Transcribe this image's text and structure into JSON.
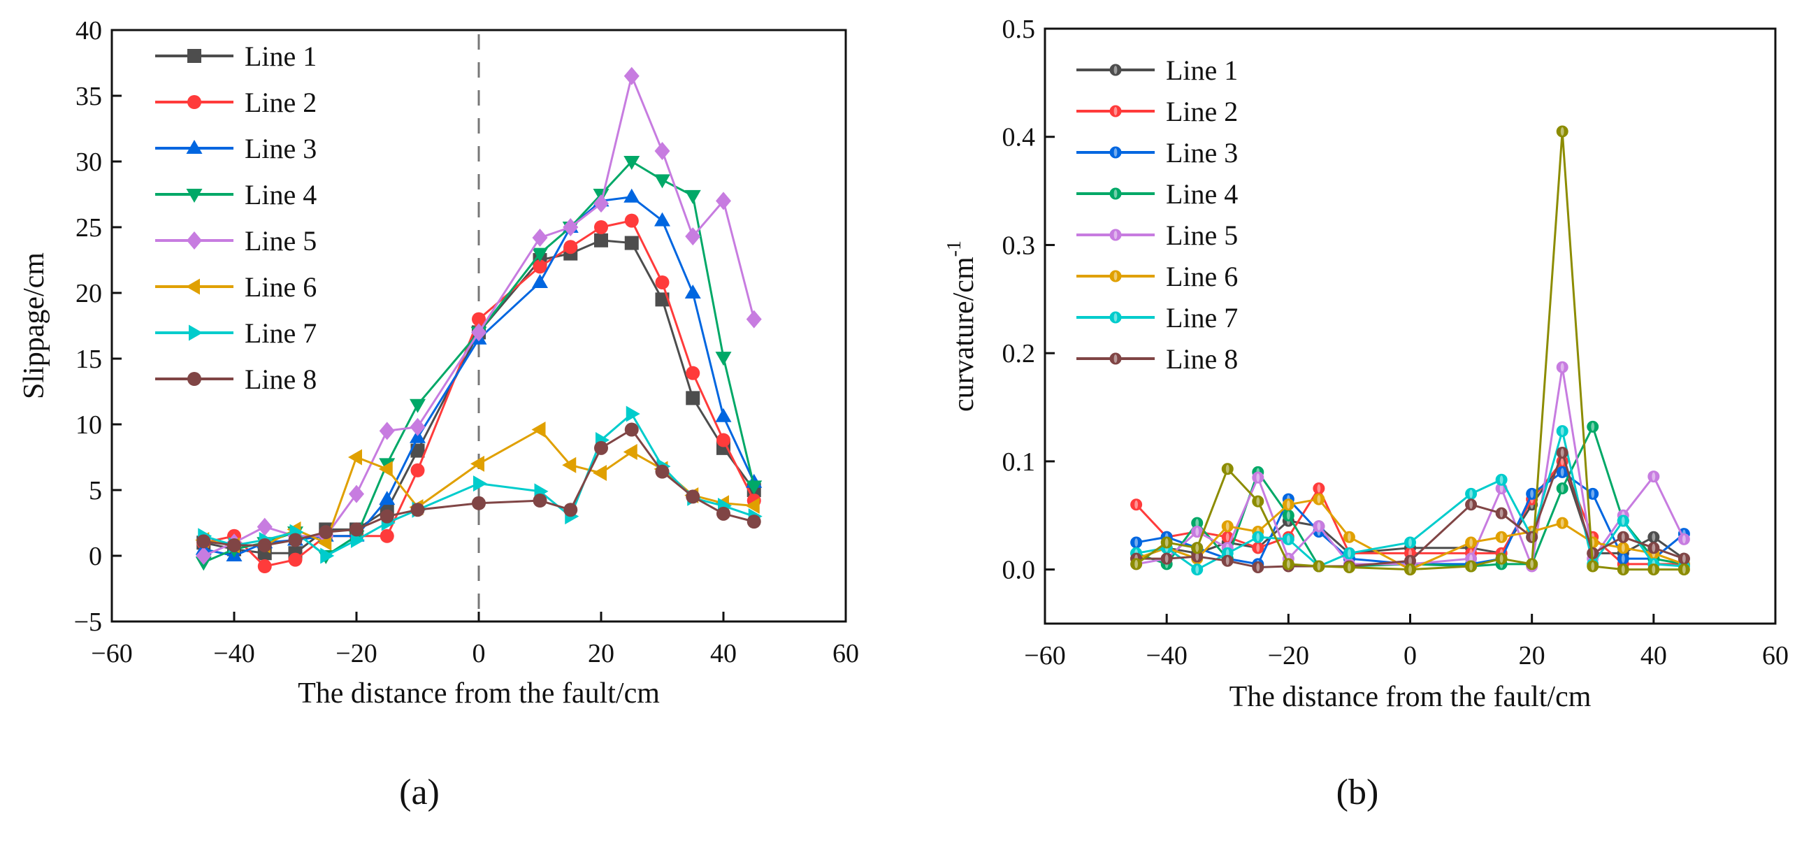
{
  "chart_data": [
    {
      "type": "line",
      "panel": "(a)",
      "xlabel": "The distance from the fault/cm",
      "ylabel": "Slippage/cm",
      "xlim": [
        -60,
        60
      ],
      "ylim": [
        -5,
        40
      ],
      "xticks": [
        -60,
        -40,
        -20,
        0,
        20,
        40,
        60
      ],
      "yticks": [
        -5,
        0,
        5,
        10,
        15,
        20,
        25,
        30,
        35,
        40
      ],
      "legend": "top-left",
      "reference_line": {
        "x": 0,
        "style": "dashed"
      },
      "x": [
        -45,
        -40,
        -35,
        -30,
        -25,
        -20,
        -15,
        -10,
        0,
        10,
        15,
        20,
        25,
        30,
        35,
        40,
        45
      ],
      "series": [
        {
          "name": "Line 1",
          "color": "#4d4d4d",
          "marker": "square",
          "values": [
            1,
            0.5,
            0.2,
            0.2,
            2,
            2,
            3.5,
            8,
            17,
            22.5,
            23,
            24,
            23.8,
            19.5,
            12,
            8.2,
            5
          ]
        },
        {
          "name": "Line 2",
          "color": "#ff3b3b",
          "marker": "circle",
          "values": [
            1,
            1.5,
            -0.8,
            -0.3,
            1.5,
            1.5,
            1.5,
            6.5,
            18,
            22,
            23.5,
            25,
            25.5,
            20.8,
            13.9,
            8.8,
            4.2
          ]
        },
        {
          "name": "Line 3",
          "color": "#0066e0",
          "marker": "triangle-up",
          "values": [
            0.5,
            0,
            1,
            1.2,
            1.5,
            1.5,
            4.3,
            9,
            16.5,
            20.8,
            25,
            27,
            27.3,
            25.5,
            20,
            10.6,
            5.6
          ]
        },
        {
          "name": "Line 4",
          "color": "#00a867",
          "marker": "triangle-down",
          "values": [
            -0.5,
            0.5,
            1,
            1.8,
            0,
            1.5,
            7,
            11.5,
            17,
            23,
            25,
            27.5,
            30,
            28.6,
            27.4,
            15.1,
            5.3
          ]
        },
        {
          "name": "Line 5",
          "color": "#c77ce0",
          "marker": "diamond",
          "values": [
            0,
            1,
            2.2,
            1.5,
            1.5,
            4.7,
            9.5,
            9.8,
            17,
            24.2,
            25,
            26.8,
            36.5,
            30.8,
            24.3,
            27,
            18
          ]
        },
        {
          "name": "Line 6",
          "color": "#e0a000",
          "marker": "triangle-left",
          "values": [
            1.2,
            0.8,
            0.8,
            2,
            1,
            7.5,
            6.6,
            3.7,
            7,
            9.6,
            6.9,
            6.3,
            7.9,
            6.6,
            4.6,
            4,
            3.8
          ]
        },
        {
          "name": "Line 7",
          "color": "#00cccc",
          "marker": "triangle-right",
          "values": [
            1.5,
            0.8,
            1.2,
            1.8,
            0,
            1.2,
            2.5,
            3.5,
            5.5,
            4.9,
            3,
            8.8,
            10.8,
            6.8,
            4.4,
            3.8,
            3
          ]
        },
        {
          "name": "Line 8",
          "color": "#804545",
          "marker": "circle",
          "values": [
            1.1,
            0.8,
            0.8,
            1.2,
            1.8,
            2.0,
            3.0,
            3.5,
            4.0,
            4.2,
            3.5,
            8.2,
            9.6,
            6.4,
            4.5,
            3.2,
            2.6
          ]
        }
      ]
    },
    {
      "type": "line",
      "panel": "(b)",
      "xlabel": "The distance from the fault/cm",
      "ylabel": "curvature/cm",
      "ylabel_superscript": "-1",
      "xlim": [
        -60,
        60
      ],
      "ylim": [
        -0.05,
        0.5
      ],
      "xticks": [
        -60,
        -40,
        -20,
        0,
        20,
        40,
        60
      ],
      "yticks": [
        0.0,
        0.1,
        0.2,
        0.3,
        0.4,
        0.5
      ],
      "legend": "top-left",
      "x": [
        -45,
        -40,
        -35,
        -30,
        -25,
        -20,
        -15,
        -10,
        0,
        10,
        15,
        20,
        25,
        30,
        35,
        40,
        45
      ],
      "series": [
        {
          "name": "Line 1",
          "color": "#4d4d4d",
          "values": [
            0.01,
            0.02,
            0.015,
            0.025,
            0.02,
            0.045,
            0.04,
            0.015,
            0.02,
            0.02,
            0.015,
            0.06,
            0.1,
            0.015,
            0.015,
            0.03,
            0.01
          ]
        },
        {
          "name": "Line 2",
          "color": "#ff3b3b",
          "values": [
            0.06,
            0.03,
            0.035,
            0.03,
            0.02,
            0.03,
            0.075,
            0.015,
            0.015,
            0.015,
            0.015,
            0.065,
            0.1,
            0.03,
            0.005,
            0.005,
            0.005
          ]
        },
        {
          "name": "Line 3",
          "color": "#0066e0",
          "values": [
            0.025,
            0.03,
            0.02,
            0.01,
            0.005,
            0.065,
            0.035,
            0.01,
            0.005,
            0.005,
            0.01,
            0.07,
            0.09,
            0.07,
            0.01,
            0.01,
            0.033
          ]
        },
        {
          "name": "Line 4",
          "color": "#00a867",
          "values": [
            0.015,
            0.005,
            0.043,
            0.01,
            0.09,
            0.05,
            0.003,
            0.003,
            0.005,
            0.003,
            0.005,
            0.005,
            0.075,
            0.132,
            0.045,
            0.01,
            0.005
          ]
        },
        {
          "name": "Line 5",
          "color": "#c77ce0",
          "values": [
            0.005,
            0.01,
            0.035,
            0.02,
            0.085,
            0.01,
            0.04,
            0.005,
            0.005,
            0.01,
            0.075,
            0.003,
            0.187,
            0.01,
            0.05,
            0.086,
            0.028
          ]
        },
        {
          "name": "Line 6",
          "color": "#e0a000",
          "values": [
            0.01,
            0.02,
            0.01,
            0.04,
            0.035,
            0.06,
            0.065,
            0.03,
            0.0,
            0.025,
            0.03,
            0.035,
            0.043,
            0.025,
            0.02,
            0.015,
            0.005
          ]
        },
        {
          "name": "Line 7",
          "color": "#00cccc",
          "values": [
            0.015,
            0.02,
            0.0,
            0.015,
            0.03,
            0.028,
            0.003,
            0.015,
            0.025,
            0.07,
            0.083,
            0.03,
            0.128,
            0.005,
            0.045,
            0.005,
            0.003
          ]
        },
        {
          "name": "Line 8",
          "color": "#804545",
          "values": [
            0.01,
            0.01,
            0.012,
            0.008,
            0.002,
            0.003,
            0.003,
            0.003,
            0.008,
            0.06,
            0.052,
            0.03,
            0.108,
            0.015,
            0.03,
            0.02,
            0.01
          ]
        },
        {
          "name": "",
          "color": "#8c8c00",
          "values": [
            0.005,
            0.025,
            0.02,
            0.093,
            0.063,
            0.005,
            0.003,
            0.002,
            0.0,
            0.003,
            0.01,
            0.005,
            0.405,
            0.003,
            0.0,
            0.0,
            0.0
          ]
        }
      ]
    }
  ]
}
